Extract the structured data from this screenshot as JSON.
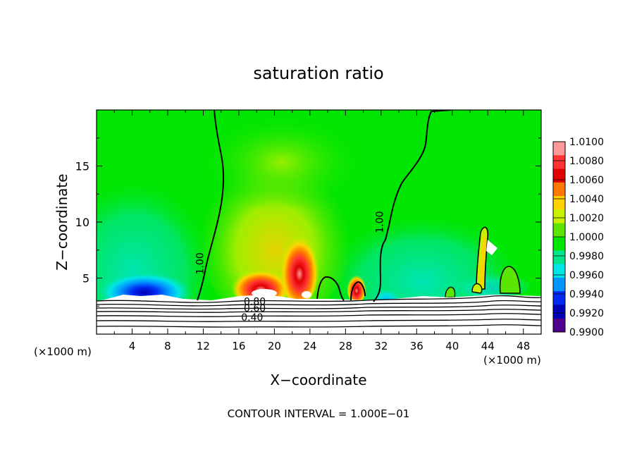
{
  "chart_data": {
    "type": "heatmap",
    "title": "saturation ratio",
    "xlabel": "X−coordinate",
    "ylabel": "Z−coordinate",
    "xlim": [
      0,
      50
    ],
    "ylim": [
      0,
      20
    ],
    "x_units_label_left": "(×1000 m)",
    "x_units_label_right": "(×1000 m)",
    "x_ticks": [
      "4",
      "8",
      "12",
      "16",
      "20",
      "24",
      "28",
      "32",
      "36",
      "40",
      "44",
      "48"
    ],
    "y_ticks": [
      "5",
      "10",
      "15"
    ],
    "contour_labels": [
      {
        "text": "1.00",
        "x": 12.0,
        "y": 6.3
      },
      {
        "text": "1.00",
        "x": 32.2,
        "y": 10.0
      },
      {
        "text": "0.80",
        "x": 17.8,
        "y": 2.6
      },
      {
        "text": "0.60",
        "x": 17.8,
        "y": 2.0
      },
      {
        "text": "0.40",
        "x": 17.5,
        "y": 1.2
      }
    ],
    "footer": "CONTOUR INTERVAL = 1.000E−01",
    "colorbar": {
      "labels": [
        "1.0100",
        "1.0080",
        "1.0060",
        "1.0040",
        "1.0020",
        "1.0000",
        "0.9980",
        "0.9960",
        "0.9940",
        "0.9920",
        "0.9900"
      ],
      "colors": [
        "#ff9999",
        "#ff3333",
        "#e00000",
        "#ff7800",
        "#ffd200",
        "#c8f000",
        "#5ae600",
        "#00e600",
        "#00e68c",
        "#00e6e6",
        "#0096ff",
        "#0028f0",
        "#0000b4",
        "#50008c"
      ]
    },
    "field_features": [
      {
        "x": 6,
        "z": 3.5,
        "value": 0.9918
      },
      {
        "x": 3,
        "z": 4.5,
        "value": 0.996
      },
      {
        "x": 19,
        "z": 4.2,
        "value": 1.007
      },
      {
        "x": 22.8,
        "z": 5.8,
        "value": 1.0065
      },
      {
        "x": 29.8,
        "z": 4.1,
        "value": 1.006
      },
      {
        "x": 20,
        "z": 9,
        "value": 1.0015
      },
      {
        "x": 43.3,
        "z": 6.5,
        "value": 1.0025
      },
      {
        "x": 46.5,
        "z": 4.5,
        "value": 1.001
      }
    ]
  }
}
